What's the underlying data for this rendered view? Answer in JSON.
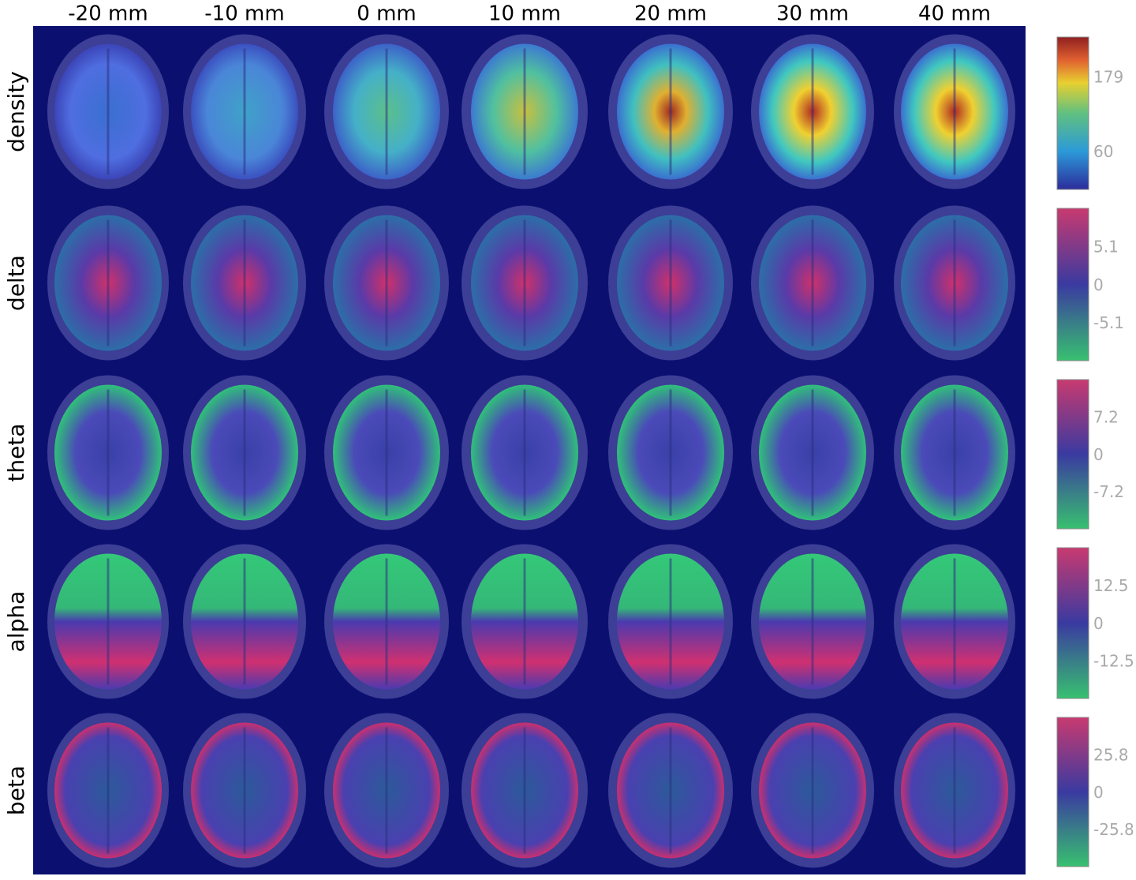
{
  "columns": [
    "-20 mm",
    "-10 mm",
    "0 mm",
    "10 mm",
    "20 mm",
    "30 mm",
    "40 mm"
  ],
  "rows": [
    {
      "label": "density",
      "colorbar": [
        "179",
        "60"
      ]
    },
    {
      "label": "delta",
      "colorbar": [
        "5.1",
        "0",
        "-5.1"
      ]
    },
    {
      "label": "theta",
      "colorbar": [
        "7.2",
        "0",
        "-7.2"
      ]
    },
    {
      "label": "alpha",
      "colorbar": [
        "12.5",
        "0",
        "-12.5"
      ]
    },
    {
      "label": "beta",
      "colorbar": [
        "25.8",
        "0",
        "-25.8"
      ]
    }
  ]
}
